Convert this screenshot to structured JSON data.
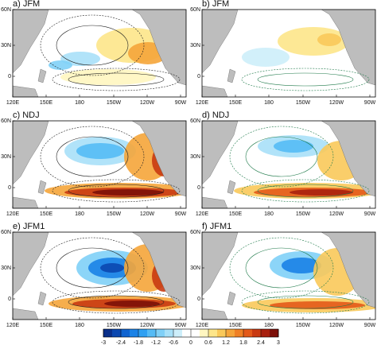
{
  "panels": [
    {
      "label": "a) JFM"
    },
    {
      "label": "b) JFM"
    },
    {
      "label": "c) NDJ"
    },
    {
      "label": "d) NDJ"
    },
    {
      "label": "e) JFM1"
    },
    {
      "label": "f) JFM1"
    }
  ],
  "lon_labels": [
    "120E",
    "150E",
    "180",
    "150W",
    "120W",
    "90W"
  ],
  "lat_labels": [
    "60N",
    "30N",
    "0"
  ],
  "colorbar": {
    "ticks": [
      -3,
      -2.4,
      -1.8,
      -1.2,
      -0.6,
      0,
      0.6,
      1.2,
      1.8,
      2.4,
      3
    ],
    "colors": [
      "#0a2f8a",
      "#0b47b0",
      "#0f63d0",
      "#1a82e6",
      "#2fa0f2",
      "#55bbf5",
      "#80d0f7",
      "#a8e0f8",
      "#cdeefa",
      "#ffffff",
      "#ffffff",
      "#fff6c0",
      "#fde68a",
      "#f9c95a",
      "#f5a53a",
      "#ef8025",
      "#e35a1a",
      "#c93a12",
      "#a8200e",
      "#7c0f08"
    ]
  }
}
